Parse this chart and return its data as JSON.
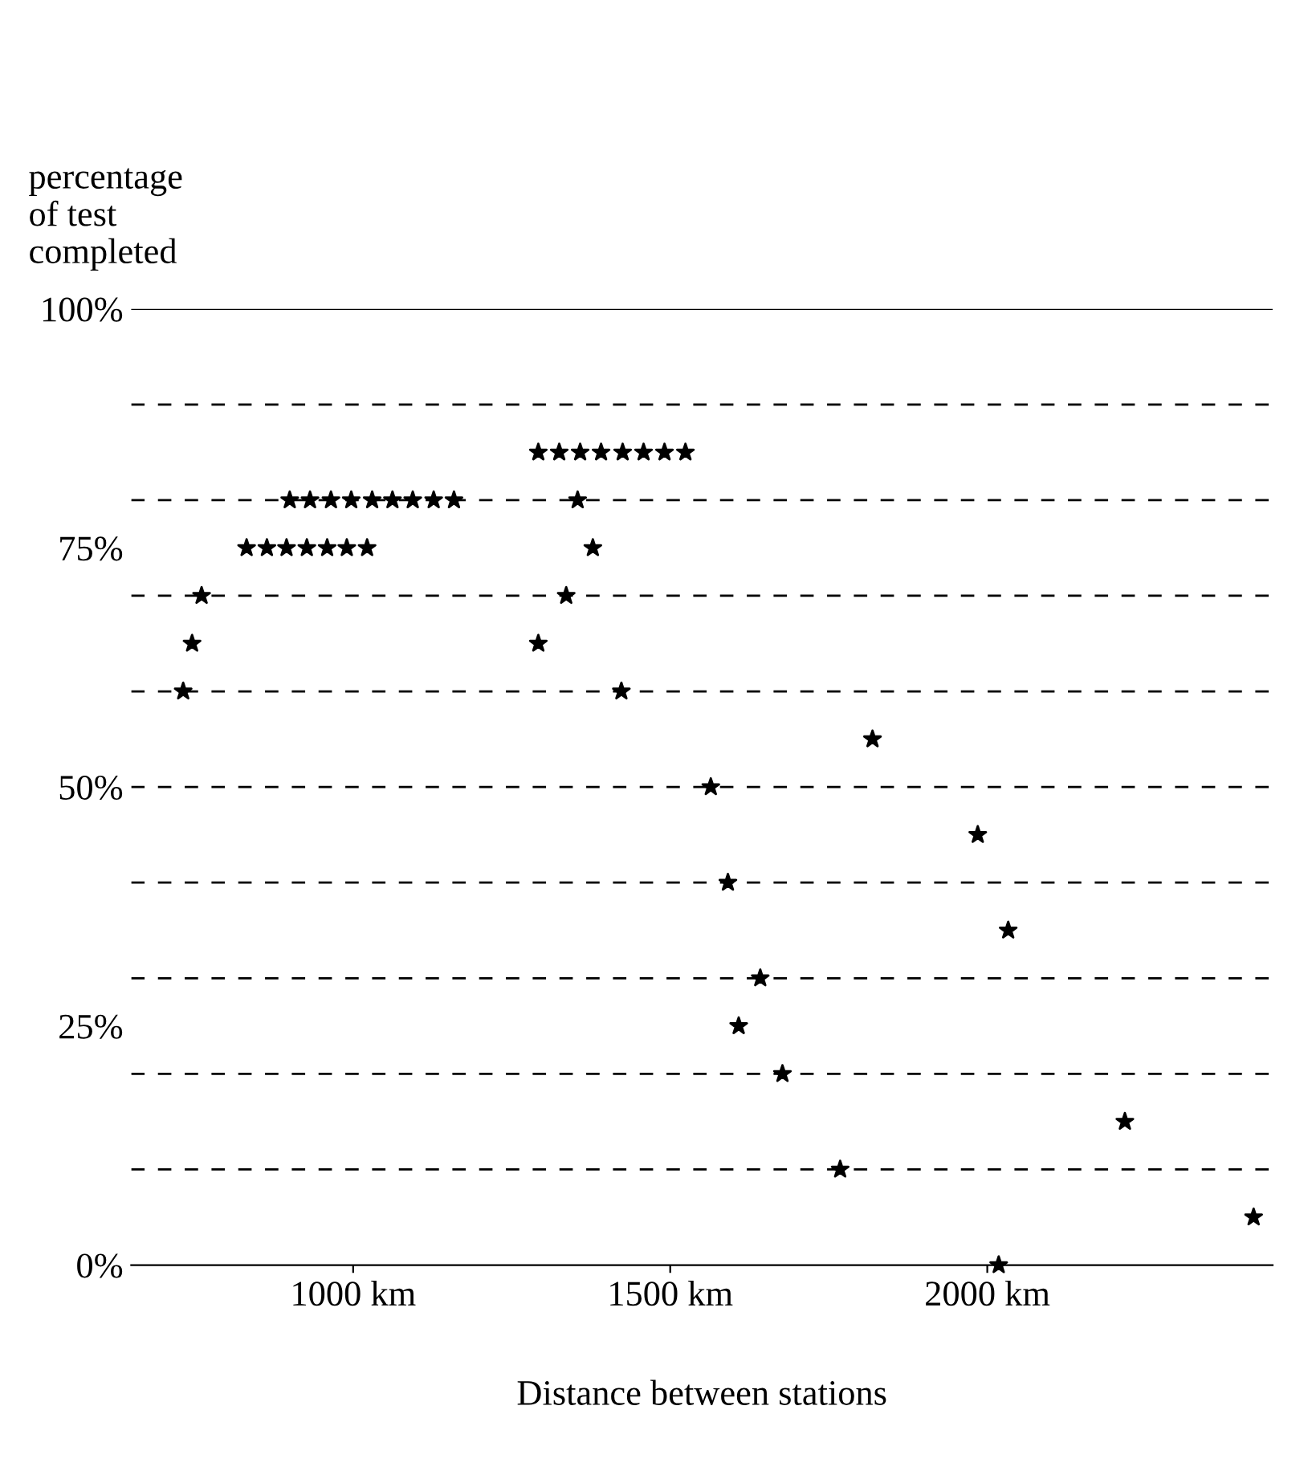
{
  "chart_data": {
    "type": "scatter",
    "xlabel": "Distance between stations",
    "ylabel": "percentage\nof test\ncompleted",
    "x": [
      1292,
      1325,
      1358,
      1391,
      1425,
      1458,
      1491,
      1524,
      900,
      932,
      965,
      997,
      1030,
      1062,
      1094,
      1127,
      1159,
      1354,
      832,
      864,
      895,
      927,
      959,
      990,
      1022,
      1378,
      761,
      1336,
      746,
      1292,
      732,
      1423,
      1819,
      1564,
      1985,
      1591,
      2033,
      1642,
      1608,
      1677,
      2217,
      1768,
      2420,
      2018
    ],
    "series": [
      {
        "color": "#000000",
        "values": [
          85,
          85,
          85,
          85,
          85,
          85,
          85,
          85,
          80,
          80,
          80,
          80,
          80,
          80,
          80,
          80,
          80,
          80,
          75,
          75,
          75,
          75,
          75,
          75,
          75,
          75,
          70,
          70,
          65,
          65,
          60,
          60,
          55,
          50,
          45,
          40,
          35,
          30,
          25,
          20,
          15,
          10,
          5,
          0
        ]
      }
    ],
    "marker": "star",
    "xlim": [
      650,
      2450
    ],
    "xticks": [
      {
        "value": 1000,
        "label": "1000 km"
      },
      {
        "value": 1500,
        "label": "1500 km"
      },
      {
        "value": 2000,
        "label": "2000 km"
      }
    ],
    "ylim": [
      0,
      100
    ],
    "yticks": [
      {
        "value": 0,
        "label": "0%"
      },
      {
        "value": 25,
        "label": "25%"
      },
      {
        "value": 50,
        "label": "50%"
      },
      {
        "value": 75,
        "label": "75%"
      },
      {
        "value": 100,
        "label": "100%"
      }
    ],
    "ref_lines": [
      {
        "axis": "y",
        "value": 10,
        "line_style": "dashed"
      },
      {
        "axis": "y",
        "value": 20,
        "line_style": "dashed"
      },
      {
        "axis": "y",
        "value": 30,
        "line_style": "dashed"
      },
      {
        "axis": "y",
        "value": 40,
        "line_style": "dashed"
      },
      {
        "axis": "y",
        "value": 50,
        "line_style": "dashed"
      },
      {
        "axis": "y",
        "value": 60,
        "line_style": "dashed"
      },
      {
        "axis": "y",
        "value": 70,
        "line_style": "dashed"
      },
      {
        "axis": "y",
        "value": 80,
        "line_style": "dashed"
      },
      {
        "axis": "y",
        "value": 90,
        "line_style": "dashed"
      },
      {
        "axis": "y",
        "value": 100,
        "line_style": "solid"
      }
    ]
  }
}
